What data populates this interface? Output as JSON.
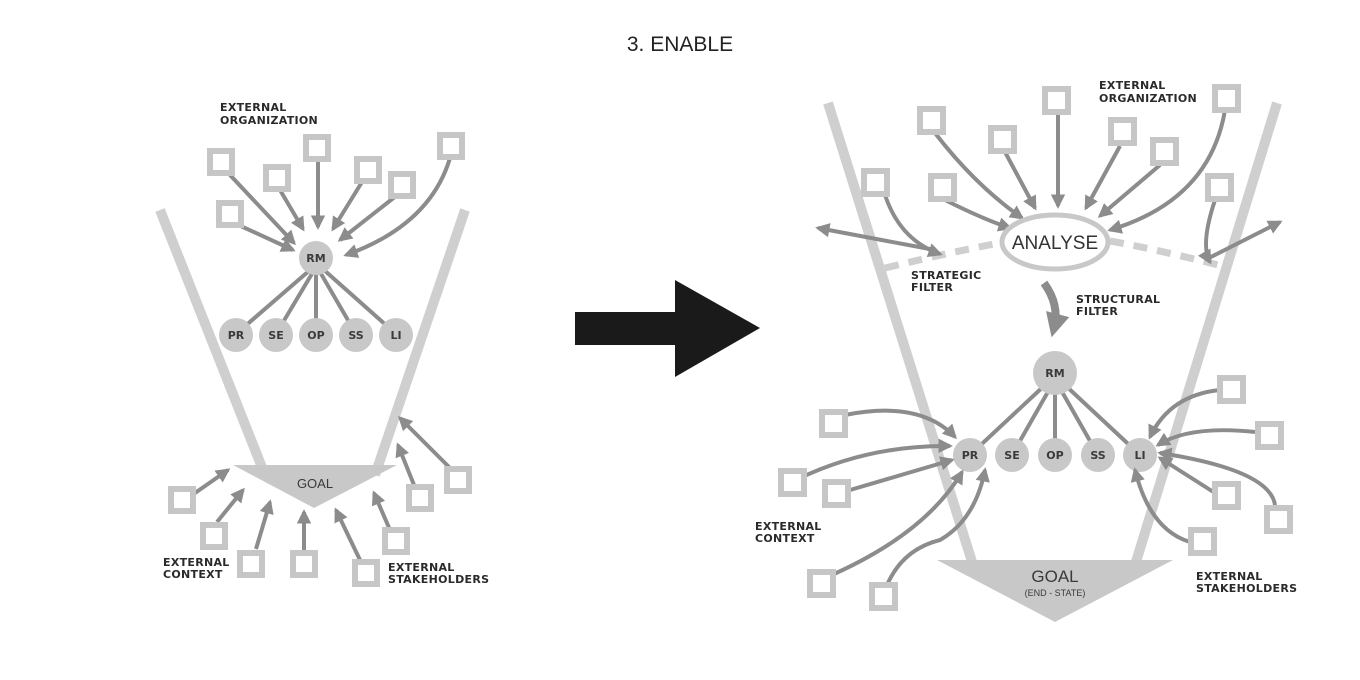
{
  "title": "3. ENABLE",
  "left": {
    "external_organization": [
      "EXTERNAL",
      "ORGANIZATION"
    ],
    "hub": "RM",
    "nodes": [
      "PR",
      "SE",
      "OP",
      "SS",
      "LI"
    ],
    "goal": "GOAL",
    "external_context": [
      "EXTERNAL",
      "CONTEXT"
    ],
    "external_stakeholders": [
      "EXTERNAL",
      "STAKEHOLDERS"
    ]
  },
  "right": {
    "external_organization": [
      "EXTERNAL",
      "ORGANIZATION"
    ],
    "analyse": "ANALYSE",
    "strategic_filter": [
      "STRATEGIC",
      "FILTER"
    ],
    "structural_filter": [
      "STRUCTURAL",
      "FILTER"
    ],
    "hub": "RM",
    "nodes": [
      "PR",
      "SE",
      "OP",
      "SS",
      "LI"
    ],
    "goal": "GOAL",
    "goal_sub": "(END - STATE)",
    "external_context": [
      "EXTERNAL",
      "CONTEXT"
    ],
    "external_stakeholders": [
      "EXTERNAL",
      "STAKEHOLDERS"
    ]
  },
  "colors": {
    "funnel": "#cfcfcf",
    "node": "#c8c8c8",
    "arrow": "#8c8c8c",
    "box": "#c6c6c6",
    "big_arrow": "#1a1a1a"
  }
}
